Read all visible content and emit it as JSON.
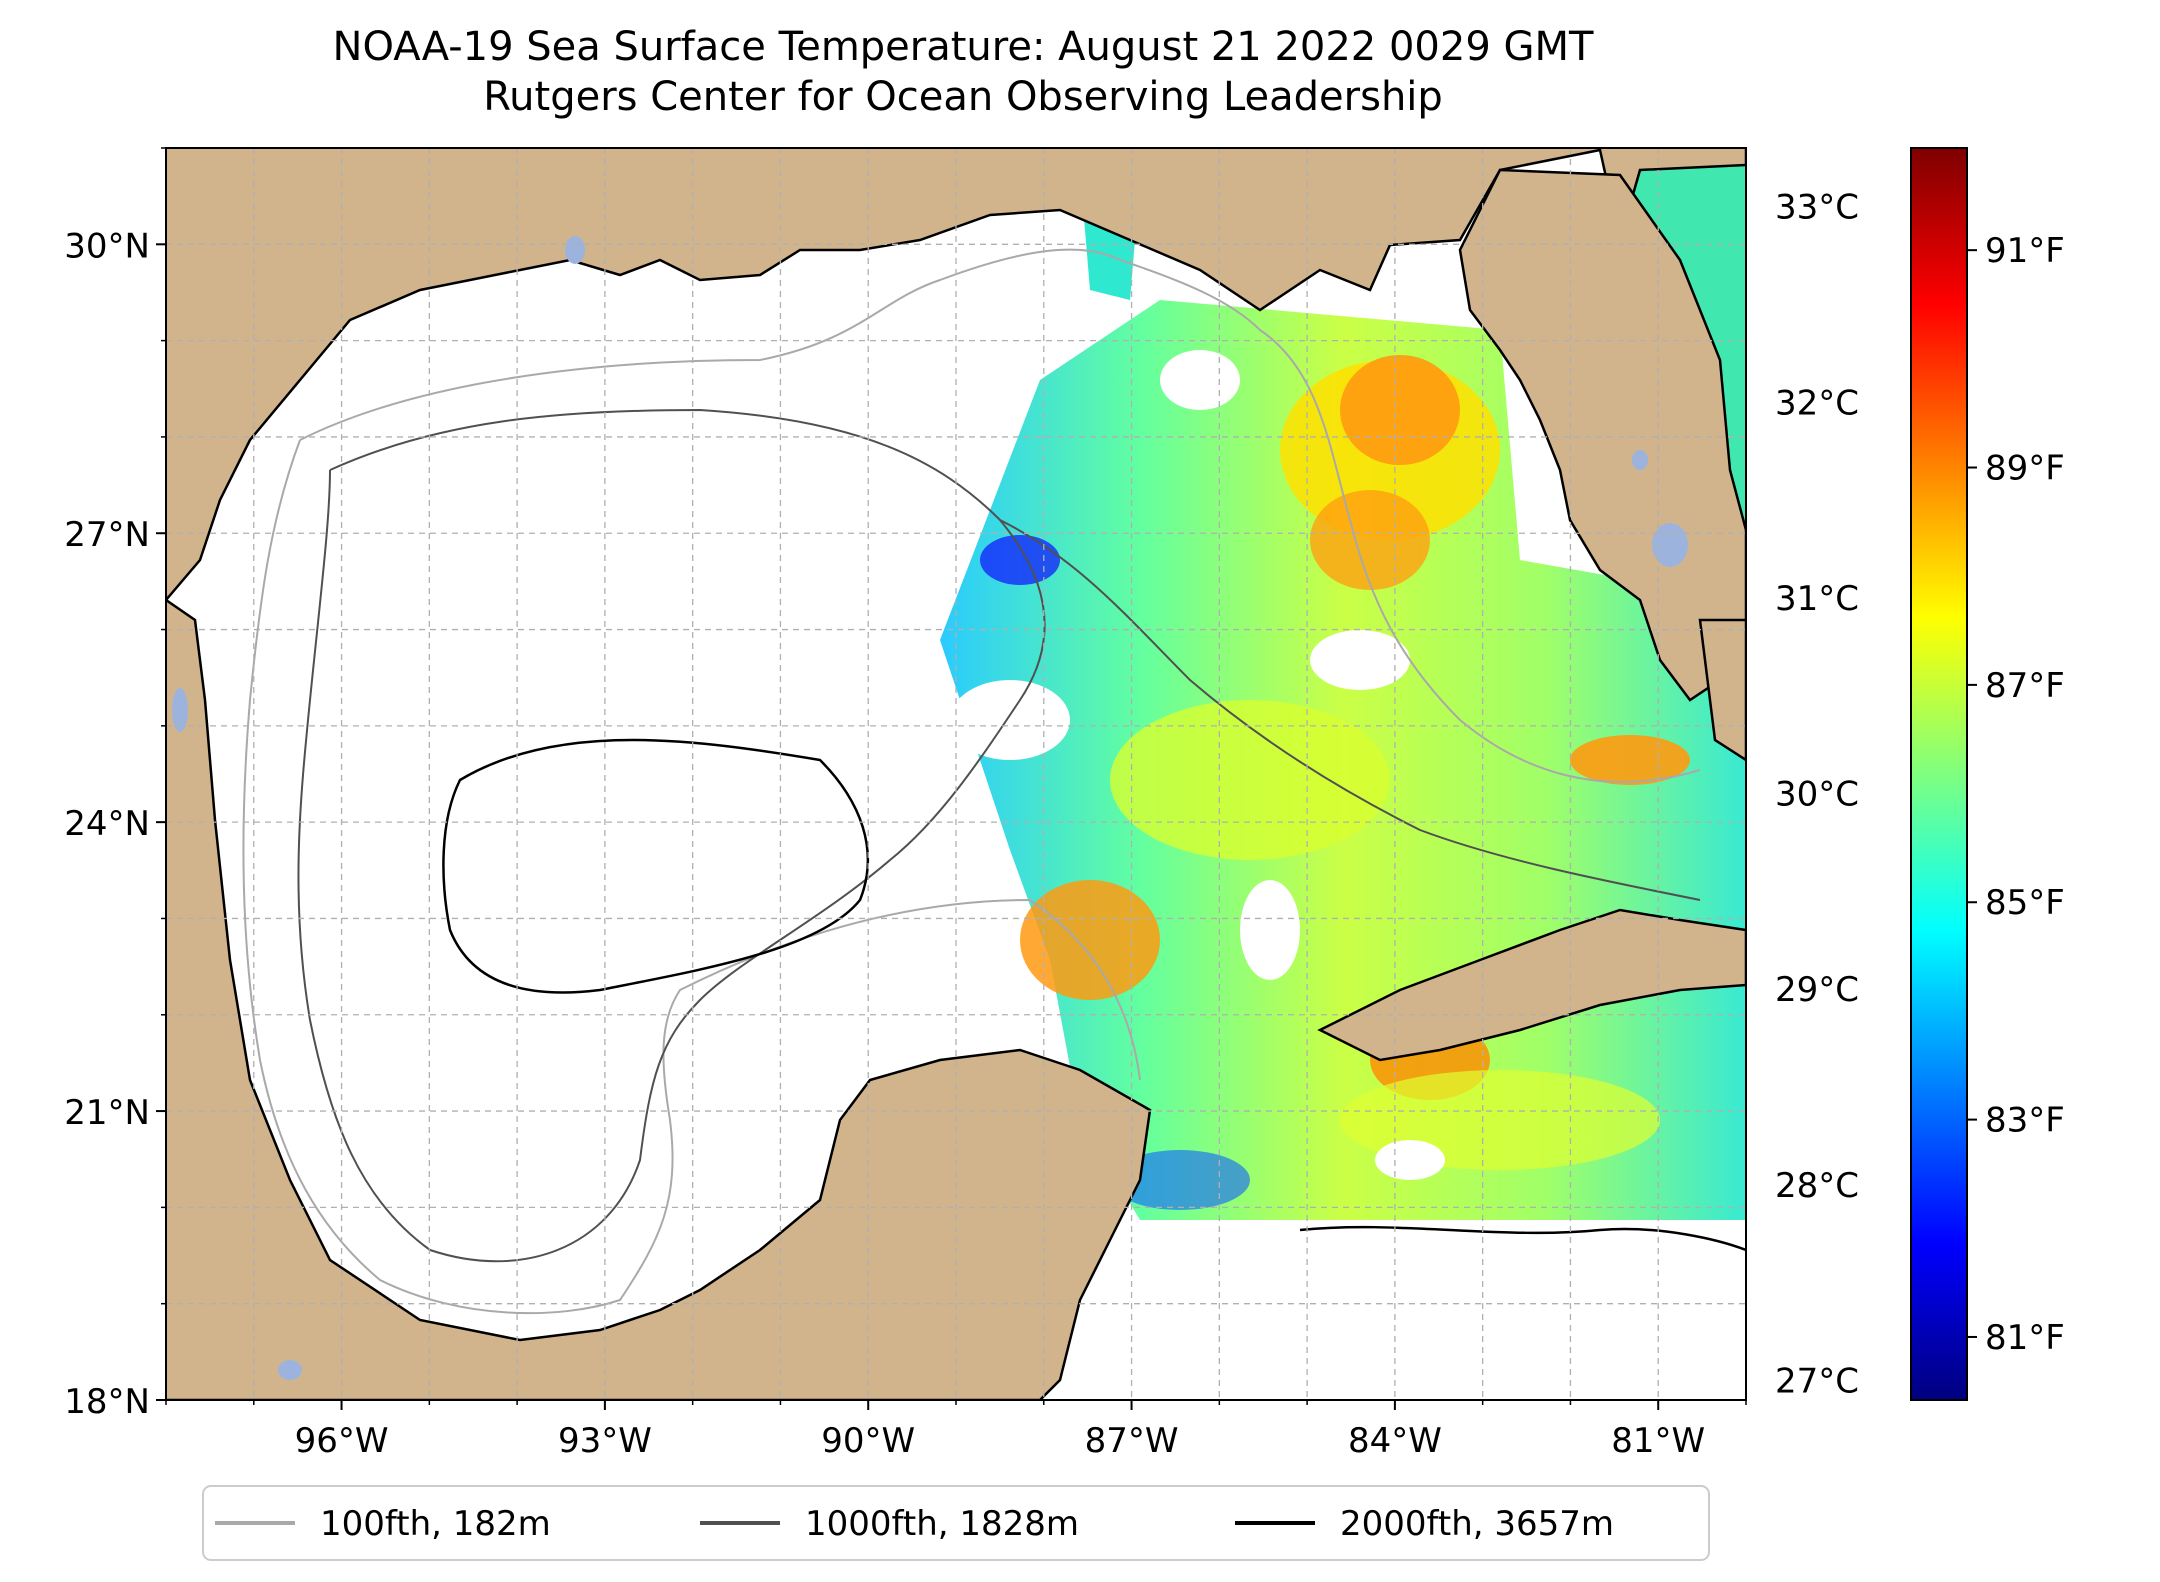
{
  "title": {
    "line1": "NOAA-19 Sea Surface Temperature: August 21 2022 0029 GMT",
    "line2": "Rutgers Center for Ocean Observing Leadership"
  },
  "map": {
    "lon_range": [
      -98,
      -80
    ],
    "lat_range": [
      18,
      31
    ],
    "lat_ticks": [
      {
        "value": 30,
        "label": "30°N"
      },
      {
        "value": 27,
        "label": "27°N"
      },
      {
        "value": 24,
        "label": "24°N"
      },
      {
        "value": 21,
        "label": "21°N"
      },
      {
        "value": 18,
        "label": "18°N"
      }
    ],
    "lon_ticks": [
      {
        "value": -96,
        "label": "96°W"
      },
      {
        "value": -93,
        "label": "93°W"
      },
      {
        "value": -90,
        "label": "90°W"
      },
      {
        "value": -87,
        "label": "87°W"
      },
      {
        "value": -84,
        "label": "84°W"
      },
      {
        "value": -81,
        "label": "81°W"
      }
    ],
    "land_color": "#d2b48c",
    "lake_color": "#9bb3dd",
    "grid_color": "#b0b0b0"
  },
  "colorbar": {
    "colormap": "jet",
    "colors": [
      "#00007f",
      "#0000ff",
      "#007fff",
      "#00ffff",
      "#7fff7f",
      "#ffff00",
      "#ff7f00",
      "#ff0000",
      "#7f0000"
    ],
    "celsius_range": [
      26.9,
      33.3
    ],
    "celsius_ticks": [
      {
        "value": 33,
        "label": "33°C"
      },
      {
        "value": 32,
        "label": "32°C"
      },
      {
        "value": 31,
        "label": "31°C"
      },
      {
        "value": 30,
        "label": "30°C"
      },
      {
        "value": 29,
        "label": "29°C"
      },
      {
        "value": 28,
        "label": "28°C"
      },
      {
        "value": 27,
        "label": "27°C"
      }
    ],
    "fahrenheit_ticks": [
      {
        "value": 91,
        "label": "91°F"
      },
      {
        "value": 89,
        "label": "89°F"
      },
      {
        "value": 87,
        "label": "87°F"
      },
      {
        "value": 85,
        "label": "85°F"
      },
      {
        "value": 83,
        "label": "83°F"
      },
      {
        "value": 81,
        "label": "81°F"
      }
    ]
  },
  "legend": {
    "items": [
      {
        "label": "100fth, 182m",
        "color": "#a9a9a9"
      },
      {
        "label": "1000fth, 1828m",
        "color": "#505050"
      },
      {
        "label": "2000fth, 3657m",
        "color": "#000000"
      }
    ]
  }
}
